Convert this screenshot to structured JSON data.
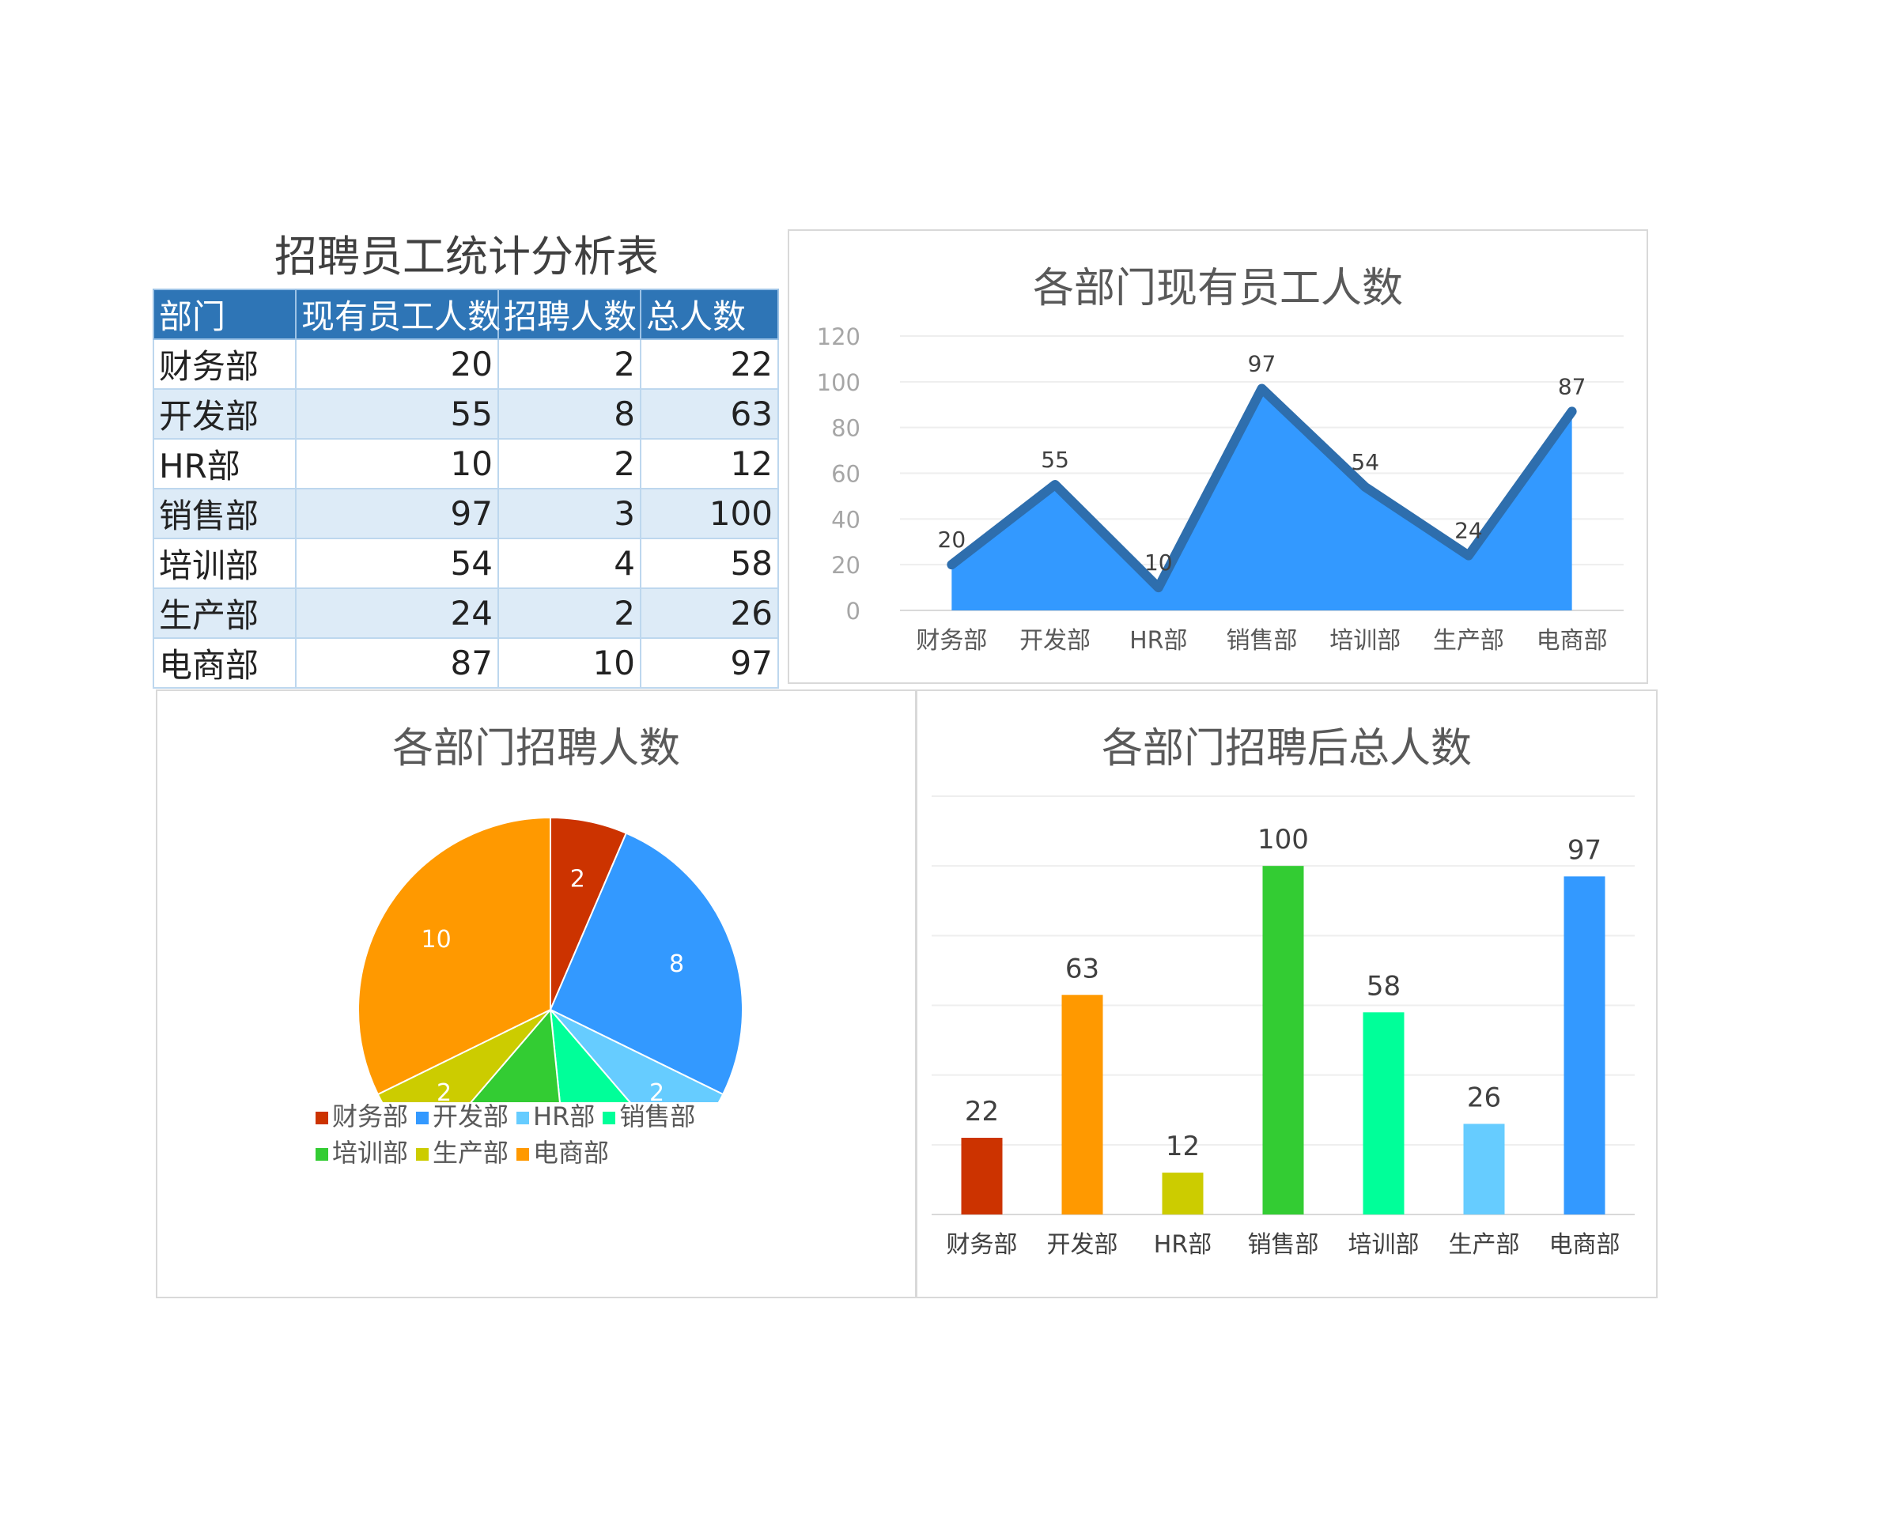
{
  "table": {
    "title": "招聘员工统计分析表",
    "headers": [
      "部门",
      "现有员工人数",
      "招聘人数",
      "总人数"
    ],
    "rows": [
      [
        "财务部",
        "20",
        "2",
        "22"
      ],
      [
        "开发部",
        "55",
        "8",
        "63"
      ],
      [
        "HR部",
        "10",
        "2",
        "12"
      ],
      [
        "销售部",
        "97",
        "3",
        "100"
      ],
      [
        "培训部",
        "54",
        "4",
        "58"
      ],
      [
        "生产部",
        "24",
        "2",
        "26"
      ],
      [
        "电商部",
        "87",
        "10",
        "97"
      ]
    ]
  },
  "chart_data": [
    {
      "type": "area",
      "title": "各部门现有员工人数",
      "categories": [
        "财务部",
        "开发部",
        "HR部",
        "销售部",
        "培训部",
        "生产部",
        "电商部"
      ],
      "values": [
        20,
        55,
        10,
        97,
        54,
        24,
        87
      ],
      "ylim": [
        0,
        120
      ],
      "yticks": [
        0,
        20,
        40,
        60,
        80,
        100,
        120
      ],
      "grid": true,
      "legend": "none",
      "fill_color": "#3399ff",
      "line_color": "#2e6ead"
    },
    {
      "type": "pie",
      "title": "各部门招聘人数",
      "categories": [
        "财务部",
        "开发部",
        "HR部",
        "销售部",
        "培训部",
        "生产部",
        "电商部"
      ],
      "values": [
        2,
        8,
        2,
        3,
        4,
        2,
        10
      ],
      "colors": [
        "#cc3300",
        "#3399ff",
        "#66ccff",
        "#00ff99",
        "#33cc33",
        "#cccc00",
        "#ff9900"
      ],
      "legend": "bottom"
    },
    {
      "type": "bar",
      "title": "各部门招聘后总人数",
      "categories": [
        "财务部",
        "开发部",
        "HR部",
        "销售部",
        "培训部",
        "生产部",
        "电商部"
      ],
      "values": [
        22,
        63,
        12,
        100,
        58,
        26,
        97
      ],
      "colors": [
        "#cc3300",
        "#ff9900",
        "#cccc00",
        "#33cc33",
        "#00ff99",
        "#66ccff",
        "#3399ff"
      ],
      "ylim": [
        0,
        120
      ],
      "grid": true,
      "legend": "none"
    }
  ]
}
